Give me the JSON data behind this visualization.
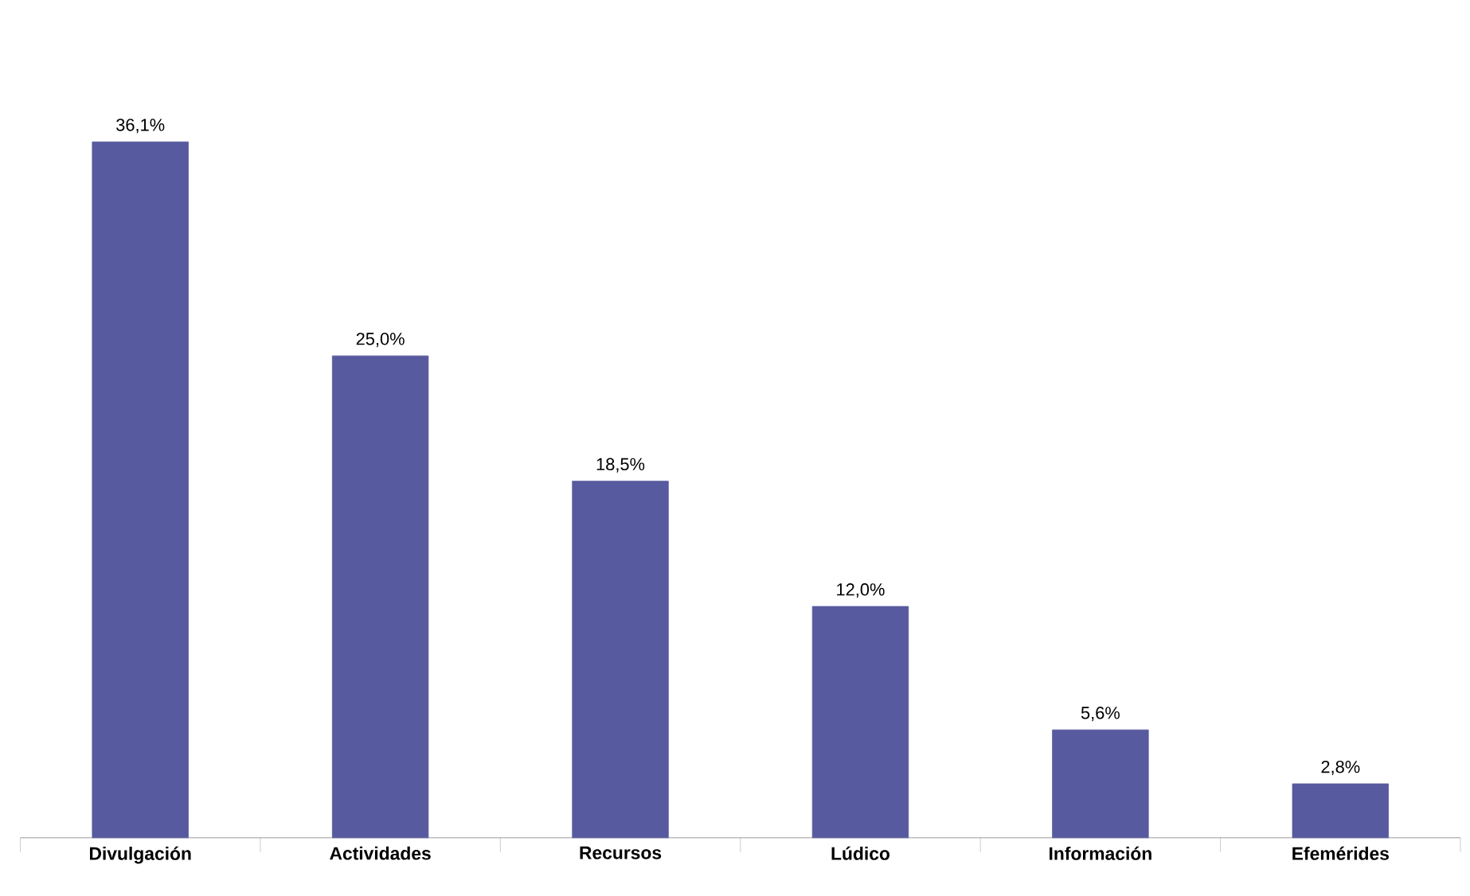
{
  "chart_data": {
    "type": "bar",
    "categories": [
      "Divulgación",
      "Actividades",
      "Recursos",
      "Lúdico",
      "Información",
      "Efemérides"
    ],
    "values": [
      36.1,
      25.0,
      18.5,
      12.0,
      5.6,
      2.8
    ],
    "value_labels": [
      "36,1%",
      "25,0%",
      "18,5%",
      "12,0%",
      "5,6%",
      "2,8%"
    ],
    "color": "#575a9e",
    "tick_labels": "x"
  }
}
